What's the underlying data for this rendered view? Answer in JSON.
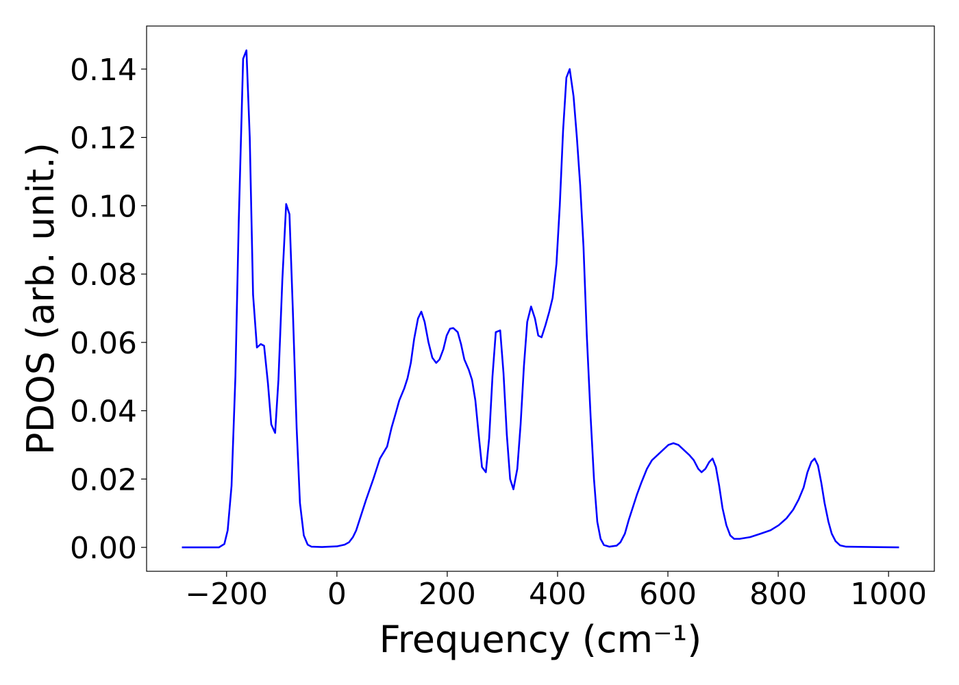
{
  "chart_data": {
    "type": "line",
    "xlabel": "Frequency (cm⁻¹)",
    "ylabel": "PDOS (arb. unit.)",
    "xlim": [
      -345,
      1083
    ],
    "ylim": [
      -0.007,
      0.1526
    ],
    "xticks": [
      {
        "value": -200,
        "label": "−200"
      },
      0,
      200,
      400,
      600,
      800,
      1000
    ],
    "yticks": [
      {
        "value": 0,
        "label": "0.00"
      },
      {
        "value": 0.02,
        "label": "0.02"
      },
      {
        "value": 0.04,
        "label": "0.04"
      },
      {
        "value": 0.06,
        "label": "0.06"
      },
      {
        "value": 0.08,
        "label": "0.08"
      },
      {
        "value": 0.1,
        "label": "0.10"
      },
      {
        "value": 0.12,
        "label": "0.12"
      },
      {
        "value": 0.14,
        "label": "0.14"
      }
    ],
    "x": [
      -281,
      -214,
      -204,
      -198,
      -191,
      -184,
      -178,
      -170,
      -164,
      -158,
      -152,
      -145,
      -138,
      -132,
      -125,
      -119,
      -112,
      -106,
      -99,
      -92,
      -86,
      -80,
      -73,
      -67,
      -60,
      -53,
      -46,
      -27,
      0,
      14,
      22,
      29,
      35,
      41,
      53,
      66,
      78,
      91,
      99,
      107,
      113,
      122,
      128,
      134,
      140,
      147,
      153,
      159,
      166,
      173,
      180,
      186,
      193,
      199,
      205,
      211,
      219,
      225,
      231,
      239,
      245,
      251,
      257,
      263,
      270,
      276,
      282,
      288,
      296,
      302,
      308,
      314,
      320,
      327,
      333,
      339,
      345,
      352,
      359,
      365,
      371,
      378,
      385,
      391,
      398,
      404,
      410,
      416,
      422,
      429,
      435,
      441,
      447,
      453,
      460,
      466,
      472,
      478,
      484,
      494,
      507,
      514,
      522,
      529,
      537,
      544,
      552,
      562,
      571,
      581,
      591,
      601,
      610,
      619,
      629,
      639,
      647,
      655,
      661,
      668,
      675,
      681,
      687,
      693,
      699,
      706,
      713,
      720,
      730,
      749,
      768,
      786,
      801,
      815,
      827,
      837,
      846,
      853,
      860,
      866,
      872,
      878,
      884,
      891,
      897,
      904,
      912,
      923,
      1019
    ],
    "series": [
      {
        "color": "#0000ff",
        "values": [
          0,
          0,
          0.001,
          0.005,
          0.018,
          0.05,
          0.095,
          0.143,
          0.1455,
          0.12,
          0.074,
          0.0585,
          0.0595,
          0.059,
          0.048,
          0.036,
          0.0335,
          0.049,
          0.078,
          0.1005,
          0.0975,
          0.07,
          0.035,
          0.013,
          0.0035,
          0.0008,
          0.0002,
          0.0001,
          0.0003,
          0.0008,
          0.0015,
          0.003,
          0.005,
          0.008,
          0.014,
          0.02,
          0.026,
          0.0295,
          0.035,
          0.0395,
          0.043,
          0.0465,
          0.0495,
          0.054,
          0.061,
          0.067,
          0.069,
          0.066,
          0.06,
          0.0555,
          0.054,
          0.055,
          0.058,
          0.062,
          0.064,
          0.0642,
          0.063,
          0.0595,
          0.055,
          0.052,
          0.049,
          0.043,
          0.033,
          0.0235,
          0.022,
          0.032,
          0.05,
          0.063,
          0.0635,
          0.051,
          0.033,
          0.02,
          0.017,
          0.023,
          0.036,
          0.053,
          0.066,
          0.0705,
          0.067,
          0.062,
          0.0615,
          0.065,
          0.069,
          0.073,
          0.083,
          0.1,
          0.122,
          0.1375,
          0.14,
          0.132,
          0.12,
          0.106,
          0.088,
          0.062,
          0.038,
          0.02,
          0.0075,
          0.0025,
          0.0007,
          0.0002,
          0.0005,
          0.0015,
          0.004,
          0.008,
          0.012,
          0.0155,
          0.019,
          0.023,
          0.0255,
          0.027,
          0.0285,
          0.03,
          0.0305,
          0.03,
          0.0285,
          0.027,
          0.0255,
          0.023,
          0.022,
          0.023,
          0.025,
          0.026,
          0.0235,
          0.018,
          0.0115,
          0.0065,
          0.0035,
          0.0025,
          0.0025,
          0.003,
          0.004,
          0.005,
          0.0065,
          0.0085,
          0.011,
          0.014,
          0.0175,
          0.022,
          0.025,
          0.026,
          0.024,
          0.019,
          0.013,
          0.0075,
          0.004,
          0.0018,
          0.0006,
          0.0002,
          0
        ]
      }
    ]
  }
}
